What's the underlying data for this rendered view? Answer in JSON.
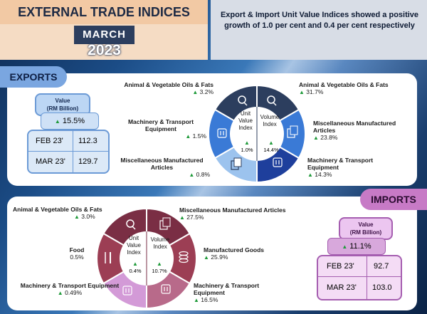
{
  "header": {
    "title": "EXTERNAL TRADE INDICES",
    "month": "MARCH",
    "year": "2023",
    "headline": "Export & Import Unit Value Indices showed a positive growth of 1.0 per cent and 0.4 per cent respectively"
  },
  "colors": {
    "export_dark": "#2c3e5e",
    "export_blue": "#3a7ad6",
    "export_light": "#9cc3ee",
    "import_dark": "#7a2e44",
    "import_mid": "#9c3e54",
    "import_light": "#d39ad7",
    "up_arrow": "#1f9a3a"
  },
  "exports": {
    "tag": "EXPORTS",
    "value_title": "Value",
    "value_unit": "(RM Billion)",
    "change": "15.5%",
    "rows": [
      {
        "label": "FEB 23'",
        "value": "112.3"
      },
      {
        "label": "MAR 23'",
        "value": "129.7"
      }
    ],
    "unit_value_index": {
      "label": "Unit Value Index",
      "change": "1.0%"
    },
    "volume_index": {
      "label": "Volume Index",
      "change": "14.4%"
    },
    "unit_items": [
      {
        "name": "Animal & Vegetable Oils & Fats",
        "change": "3.2%",
        "icon": "oil-bottle-icon"
      },
      {
        "name": "Machinery & Transport Equipment",
        "change": "1.5%",
        "icon": "machinery-icon"
      },
      {
        "name": "Miscellaneous Manufactured Articles",
        "change": "0.8%",
        "icon": "articles-icon"
      }
    ],
    "volume_items": [
      {
        "name": "Animal & Vegetable Oils & Fats",
        "change": "31.7%",
        "icon": "oil-bottle-icon"
      },
      {
        "name": "Miscellaneous Manufactured Articles",
        "change": "23.8%",
        "icon": "articles-icon"
      },
      {
        "name": "Machinery & Transport Equipment",
        "change": "14.3%",
        "icon": "machinery-icon"
      }
    ]
  },
  "imports": {
    "tag": "IMPORTS",
    "value_title": "Value",
    "value_unit": "(RM Billion)",
    "change": "11.1%",
    "rows": [
      {
        "label": "FEB 23'",
        "value": "92.7"
      },
      {
        "label": "MAR 23'",
        "value": "103.0"
      }
    ],
    "unit_value_index": {
      "label": "Unit Value Index",
      "change": "0.4%"
    },
    "volume_index": {
      "label": "Volume Index",
      "change": "10.7%"
    },
    "unit_items": [
      {
        "name": "Animal & Vegetable Oils & Fats",
        "change": "3.0%",
        "icon": "oil-bottle-icon"
      },
      {
        "name": "Food",
        "change": "0.5%",
        "icon": "food-icon"
      },
      {
        "name": "Machinery & Transport Equipment",
        "change": "0.49%",
        "icon": "machinery-icon"
      }
    ],
    "volume_items": [
      {
        "name": "Miscellaneous Manufactured Articles",
        "change": "27.5%",
        "icon": "articles-icon"
      },
      {
        "name": "Manufactured Goods",
        "change": "25.9%",
        "icon": "goods-icon"
      },
      {
        "name": "Machinery & Transport Equipment",
        "change": "16.5%",
        "icon": "machinery-icon"
      }
    ]
  }
}
